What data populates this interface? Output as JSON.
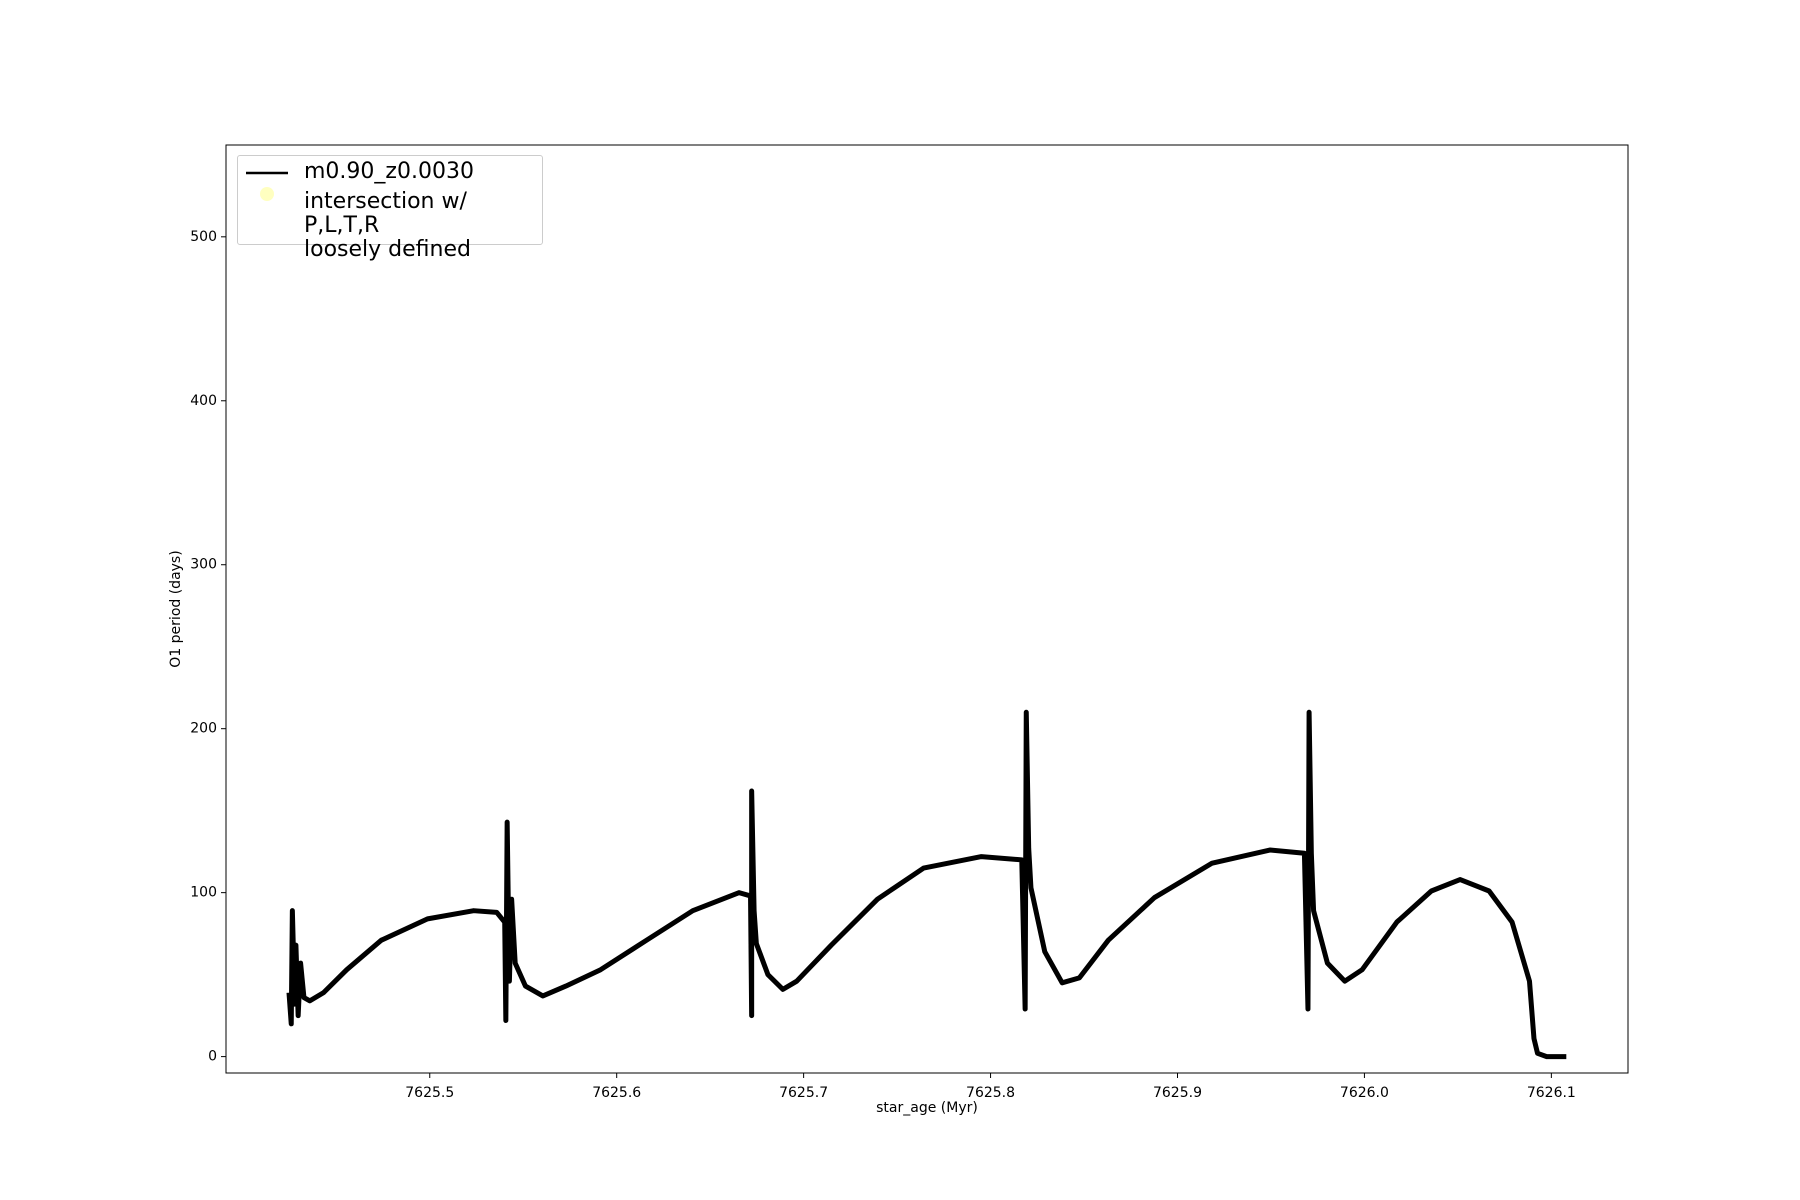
{
  "chart_data": {
    "type": "line",
    "xlabel": "star_age (Myr)",
    "ylabel": "O1 period (days)",
    "xlim": [
      7625.391,
      7626.141
    ],
    "ylim": [
      -10,
      556
    ],
    "xticks": [
      7625.5,
      7625.6,
      7625.7,
      7625.8,
      7625.9,
      {
        "value": 7626,
        "label": "7626.0"
      },
      7626.1
    ],
    "yticks": [
      0,
      100,
      200,
      300,
      400,
      500
    ],
    "legend": "upper left",
    "series": [
      {
        "name": "m0.90_z0.0030",
        "color": "#000000",
        "x": [
          7625.4247,
          7625.4259,
          7625.4265,
          7625.4278,
          7625.4284,
          7625.4296,
          7625.4309,
          7625.4327,
          7625.4358,
          7625.4432,
          7625.4556,
          7625.4741,
          7625.4988,
          7625.5235,
          7625.5358,
          7625.5401,
          7625.5407,
          7625.5414,
          7625.5426,
          7625.5438,
          7625.5457,
          7625.5512,
          7625.5605,
          7625.5728,
          7625.5914,
          7625.616,
          7625.6407,
          7625.6654,
          7625.6716,
          7625.6722,
          7625.6722,
          7625.6735,
          7625.6747,
          7625.6809,
          7625.6889,
          7625.6963,
          7625.7148,
          7625.7395,
          7625.7642,
          7625.7951,
          7625.8167,
          7625.8185,
          7625.8191,
          7625.8204,
          7625.8216,
          7625.829,
          7625.8383,
          7625.8475,
          7625.863,
          7625.8877,
          7625.9185,
          7625.9494,
          7625.9679,
          7625.9698,
          7625.9704,
          7625.9716,
          7625.9728,
          7625.9802,
          7625.9895,
          7625.9988,
          7626.0173,
          7626.0358,
          7626.0512,
          7626.0667,
          7626.079,
          7626.0883,
          7626.0907,
          7626.0926,
          7626.0975,
          7626.108
        ],
        "values": [
          39,
          20,
          89,
          32,
          68,
          25,
          57,
          36,
          34,
          39,
          53,
          71,
          84,
          89,
          88,
          82,
          22,
          143,
          46,
          96,
          57,
          43,
          37,
          43,
          53,
          71,
          89,
          100,
          98,
          25,
          162,
          89,
          69,
          50,
          41,
          46,
          68,
          96,
          115,
          122,
          120,
          29,
          210,
          127,
          103,
          64,
          45,
          48,
          71,
          97,
          118,
          126,
          124,
          29,
          210,
          124,
          89,
          57,
          46,
          53,
          82,
          101,
          108,
          101,
          82,
          46,
          11,
          2,
          0,
          0
        ]
      },
      {
        "name": "intersection w/ P,L,T,R\nloosely defined",
        "color": "#ffffc0",
        "x": [],
        "values": []
      }
    ]
  }
}
